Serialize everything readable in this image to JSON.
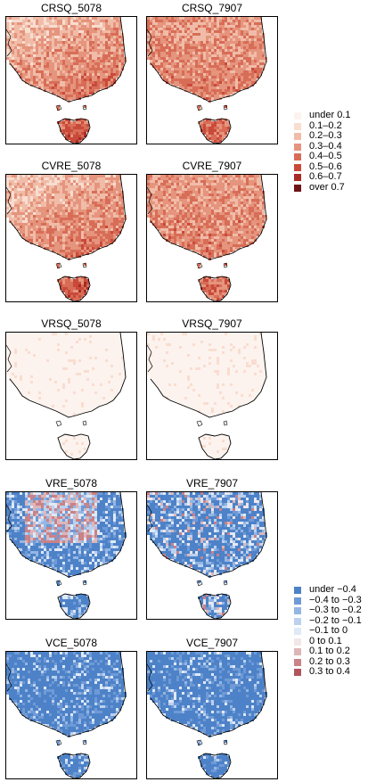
{
  "panels": [
    {
      "title": "CRSQ_5078",
      "style": "cr_south"
    },
    {
      "title": "CRSQ_7907",
      "style": "cr_even"
    },
    {
      "title": "CVRE_5078",
      "style": "cr_south"
    },
    {
      "title": "CVRE_7907",
      "style": "cr_even"
    },
    {
      "title": "VRSQ_5078",
      "style": "vrsq"
    },
    {
      "title": "VRSQ_7907",
      "style": "vrsq"
    },
    {
      "title": "VRE_5078",
      "style": "vre_a"
    },
    {
      "title": "VRE_7907",
      "style": "vre_b"
    },
    {
      "title": "VCE_5078",
      "style": "vce"
    },
    {
      "title": "VCE_7907",
      "style": "vce"
    }
  ],
  "legend_positive": {
    "items": [
      {
        "label": "under 0.1",
        "color": "#fdf3ee"
      },
      {
        "label": "0.1–0.2",
        "color": "#f8ddd0"
      },
      {
        "label": "0.2–0.3",
        "color": "#f0bca8"
      },
      {
        "label": "0.3–0.4",
        "color": "#e5947d"
      },
      {
        "label": "0.4–0.5",
        "color": "#d86d57"
      },
      {
        "label": "0.5–0.6",
        "color": "#c94a3a"
      },
      {
        "label": "0.6–0.7",
        "color": "#a82b25"
      },
      {
        "label": "over 0.7",
        "color": "#6e1416"
      }
    ]
  },
  "legend_diverging": {
    "items": [
      {
        "label": "under −0.4",
        "color": "#4d82c8"
      },
      {
        "label": "−0.4 to −0.3",
        "color": "#6f9ad6"
      },
      {
        "label": "−0.3 to −0.2",
        "color": "#94b6e2"
      },
      {
        "label": "−0.2 to −0.1",
        "color": "#bcd1ee"
      },
      {
        "label": "−0.1 to 0",
        "color": "#dfe9f7"
      },
      {
        "label": "0 to 0.1",
        "color": "#f2e6e6"
      },
      {
        "label": "0.1 to 0.2",
        "color": "#deb5b8"
      },
      {
        "label": "0.2 to 0.3",
        "color": "#c98288"
      },
      {
        "label": "0.3 to 0.4",
        "color": "#b0545c"
      }
    ]
  }
}
